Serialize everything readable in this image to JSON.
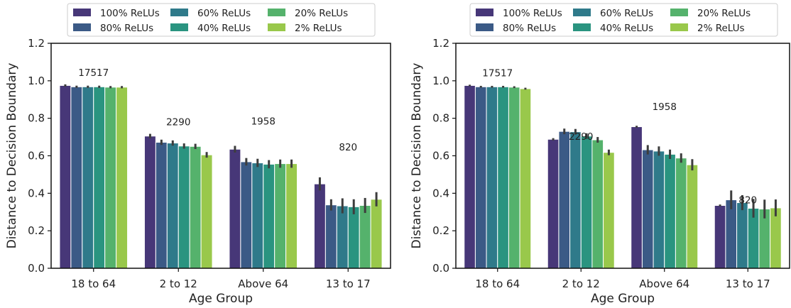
{
  "chart_data": [
    {
      "type": "bar",
      "xlabel": "Age Group",
      "ylabel": "Distance to Decision Boundary",
      "ylim": [
        0,
        1.2
      ],
      "yticks": [
        "0.0",
        "0.2",
        "0.4",
        "0.6",
        "0.8",
        "1.0",
        "1.2"
      ],
      "legend_position": "top",
      "categories": [
        "18 to 64",
        "2 to 12",
        "Above 64",
        "13 to 17"
      ],
      "counts": [
        "17517",
        "2290",
        "1958",
        "820"
      ],
      "series": [
        {
          "name": "100% ReLUs",
          "color": "#473778",
          "values": [
            0.975,
            0.705,
            0.635,
            0.45
          ],
          "err": [
            0.006,
            0.012,
            0.018,
            0.035
          ]
        },
        {
          "name": "80% ReLUs",
          "color": "#3b5a86",
          "values": [
            0.968,
            0.672,
            0.568,
            0.338
          ],
          "err": [
            0.006,
            0.014,
            0.02,
            0.03
          ]
        },
        {
          "name": "60% ReLUs",
          "color": "#2f7a8a",
          "values": [
            0.968,
            0.668,
            0.562,
            0.333
          ],
          "err": [
            0.006,
            0.014,
            0.022,
            0.04
          ]
        },
        {
          "name": "40% ReLUs",
          "color": "#2a9480",
          "values": [
            0.968,
            0.652,
            0.555,
            0.328
          ],
          "err": [
            0.006,
            0.014,
            0.022,
            0.04
          ]
        },
        {
          "name": "20% ReLUs",
          "color": "#55b26c",
          "values": [
            0.966,
            0.65,
            0.558,
            0.335
          ],
          "err": [
            0.006,
            0.014,
            0.022,
            0.04
          ]
        },
        {
          "name": "2% ReLUs",
          "color": "#99c84b",
          "values": [
            0.966,
            0.605,
            0.558,
            0.368
          ],
          "err": [
            0.006,
            0.015,
            0.022,
            0.038
          ]
        }
      ]
    },
    {
      "type": "bar",
      "xlabel": "Age Group",
      "ylabel": "Distance to Decision Boundary",
      "ylim": [
        0,
        1.2
      ],
      "yticks": [
        "0.0",
        "0.2",
        "0.4",
        "0.6",
        "0.8",
        "1.0",
        "1.2"
      ],
      "legend_position": "top",
      "categories": [
        "18 to 64",
        "2 to 12",
        "Above 64",
        "13 to 17"
      ],
      "counts": [
        "17517",
        "2290",
        "1958",
        "820"
      ],
      "series": [
        {
          "name": "100% ReLUs",
          "color": "#473778",
          "values": [
            0.975,
            0.688,
            0.755,
            0.335
          ],
          "err": [
            0.004,
            0.006,
            0.005,
            0.005
          ]
        },
        {
          "name": "80% ReLUs",
          "color": "#3b5a86",
          "values": [
            0.968,
            0.73,
            0.632,
            0.365
          ],
          "err": [
            0.005,
            0.015,
            0.025,
            0.05
          ]
        },
        {
          "name": "60% ReLUs",
          "color": "#2f7a8a",
          "values": [
            0.968,
            0.728,
            0.625,
            0.35
          ],
          "err": [
            0.005,
            0.015,
            0.025,
            0.04
          ]
        },
        {
          "name": "40% ReLUs",
          "color": "#2a9480",
          "values": [
            0.968,
            0.705,
            0.608,
            0.32
          ],
          "err": [
            0.005,
            0.015,
            0.025,
            0.05
          ]
        },
        {
          "name": "20% ReLUs",
          "color": "#55b26c",
          "values": [
            0.966,
            0.685,
            0.588,
            0.316
          ],
          "err": [
            0.005,
            0.015,
            0.025,
            0.05
          ]
        },
        {
          "name": "2% ReLUs",
          "color": "#99c84b",
          "values": [
            0.958,
            0.618,
            0.552,
            0.322
          ],
          "err": [
            0.005,
            0.015,
            0.03,
            0.045
          ]
        }
      ]
    }
  ]
}
